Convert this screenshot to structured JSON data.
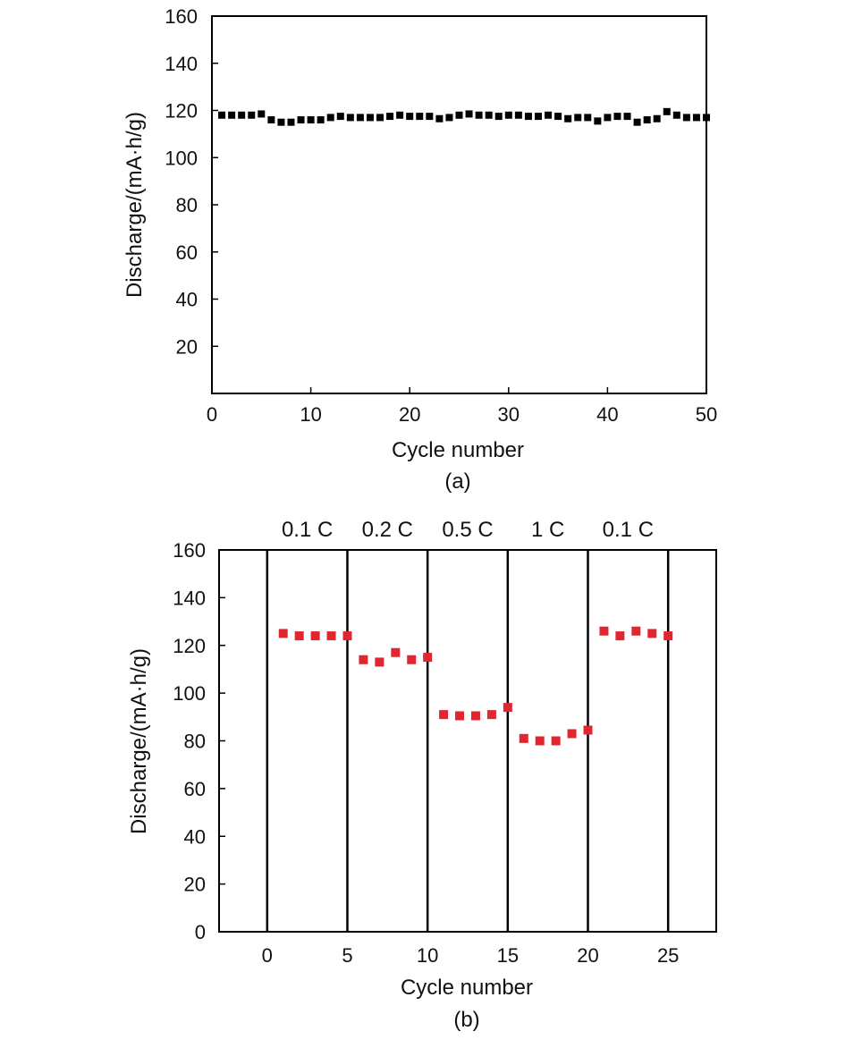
{
  "chart_data": [
    {
      "type": "scatter",
      "panel_label": "(a)",
      "xlabel": "Cycle number",
      "ylabel": "Discharge/(mA·h/g)",
      "xlim": [
        0,
        50
      ],
      "ylim": [
        0,
        160
      ],
      "xticks": [
        0,
        10,
        20,
        30,
        40,
        50
      ],
      "yticks": [
        20,
        40,
        60,
        80,
        100,
        120,
        140,
        160
      ],
      "grid": false,
      "marker": "square",
      "color": "#000000",
      "x": [
        1,
        2,
        3,
        4,
        5,
        6,
        7,
        8,
        9,
        10,
        11,
        12,
        13,
        14,
        15,
        16,
        17,
        18,
        19,
        20,
        21,
        22,
        23,
        24,
        25,
        26,
        27,
        28,
        29,
        30,
        31,
        32,
        33,
        34,
        35,
        36,
        37,
        38,
        39,
        40,
        41,
        42,
        43,
        44,
        45,
        46,
        47,
        48,
        49,
        50
      ],
      "y": [
        118,
        118,
        118,
        118,
        118.5,
        116,
        115,
        115,
        116,
        116,
        116,
        117,
        117.5,
        117,
        117,
        117,
        117,
        117.5,
        118,
        117.5,
        117.5,
        117.5,
        116.5,
        117,
        118,
        118.5,
        118,
        118,
        117.5,
        118,
        118,
        117.5,
        117.5,
        118,
        117.5,
        116.5,
        117,
        117,
        115.5,
        117,
        117.5,
        117.5,
        115,
        116,
        116.5,
        119.5,
        118,
        117,
        117,
        117
      ]
    },
    {
      "type": "scatter",
      "panel_label": "(b)",
      "xlabel": "Cycle number",
      "ylabel": "Discharge/(mA·h/g)",
      "xlim": [
        -3,
        28
      ],
      "ylim": [
        0,
        160
      ],
      "xticks": [
        0,
        5,
        10,
        15,
        20,
        25
      ],
      "yticks": [
        0,
        20,
        40,
        60,
        80,
        100,
        120,
        140,
        160
      ],
      "grid": false,
      "marker": "square",
      "color": "#e0262e",
      "dividers": [
        0,
        5,
        10,
        15,
        20,
        25
      ],
      "regimes": [
        "0.1 C",
        "0.2 C",
        "0.5 C",
        "1 C",
        "0.1 C"
      ],
      "x": [
        1,
        2,
        3,
        4,
        5,
        6,
        7,
        8,
        9,
        10,
        11,
        12,
        13,
        14,
        15,
        16,
        17,
        18,
        19,
        20,
        21,
        22,
        23,
        24,
        25
      ],
      "y": [
        125,
        124,
        124,
        124,
        124,
        114,
        113,
        117,
        114,
        115,
        91,
        90.5,
        90.5,
        91,
        94,
        81,
        80,
        80,
        83,
        84.5,
        126,
        124,
        126,
        125,
        124
      ]
    }
  ]
}
